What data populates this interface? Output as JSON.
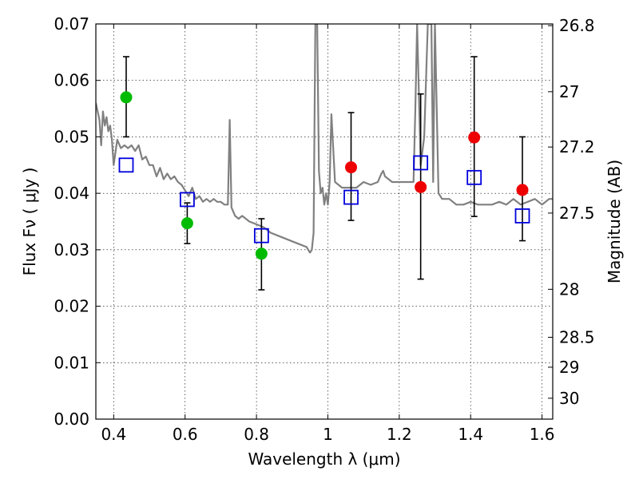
{
  "chart_data": {
    "type": "scatter",
    "title": "",
    "xlabel": "Wavelength  λ (μm)",
    "ylabel": "Flux  Fν  ( μJy )",
    "y2label": "Magnitude (AB)",
    "xlim": [
      0.35,
      1.63
    ],
    "ylim": [
      0.0,
      0.07
    ],
    "grid": true,
    "x_ticks": [
      0.4,
      0.6,
      0.8,
      1.0,
      1.2,
      1.4,
      1.6
    ],
    "x_tick_labels": [
      "0.4",
      "0.6",
      "0.8",
      "1",
      "1.2",
      "1.4",
      "1.6"
    ],
    "y_ticks": [
      0.0,
      0.01,
      0.02,
      0.03,
      0.04,
      0.05,
      0.06,
      0.07
    ],
    "y_tick_labels": [
      "0.00",
      "0.01",
      "0.02",
      "0.03",
      "0.04",
      "0.05",
      "0.06",
      "0.07"
    ],
    "y2_ticks": [
      {
        "label": "26.8",
        "flux": 0.0697
      },
      {
        "label": "27",
        "flux": 0.058
      },
      {
        "label": "27.2",
        "flux": 0.0482
      },
      {
        "label": "27.5",
        "flux": 0.0365
      },
      {
        "label": "28",
        "flux": 0.023
      },
      {
        "label": "28.5",
        "flux": 0.0145
      },
      {
        "label": "29",
        "flux": 0.0092
      },
      {
        "label": "30",
        "flux": 0.0037
      }
    ],
    "series": [
      {
        "marker": "circle",
        "color": "#00bb00",
        "points": [
          {
            "x": 0.435,
            "y": 0.057,
            "yerr_lo": 0.05,
            "yerr_hi": 0.0642
          },
          {
            "x": 0.606,
            "y": 0.0347,
            "yerr_lo": 0.0311,
            "yerr_hi": 0.0383
          },
          {
            "x": 0.814,
            "y": 0.0293,
            "yerr_lo": 0.0229,
            "yerr_hi": 0.0355
          }
        ]
      },
      {
        "marker": "circle",
        "color": "#ee0000",
        "points": [
          {
            "x": 1.065,
            "y": 0.0446,
            "yerr_lo": 0.0352,
            "yerr_hi": 0.0543
          },
          {
            "x": 1.26,
            "y": 0.0411,
            "yerr_lo": 0.0248,
            "yerr_hi": 0.0576
          },
          {
            "x": 1.41,
            "y": 0.0499,
            "yerr_lo": 0.0359,
            "yerr_hi": 0.0642
          },
          {
            "x": 1.545,
            "y": 0.0406,
            "yerr_lo": 0.0316,
            "yerr_hi": 0.05
          }
        ]
      },
      {
        "marker": "open-square",
        "color": "#0000dd",
        "points": [
          {
            "x": 0.435,
            "y": 0.045
          },
          {
            "x": 0.606,
            "y": 0.0389
          },
          {
            "x": 0.814,
            "y": 0.0325
          },
          {
            "x": 1.065,
            "y": 0.0393
          },
          {
            "x": 1.26,
            "y": 0.0454
          },
          {
            "x": 1.41,
            "y": 0.0428
          },
          {
            "x": 1.545,
            "y": 0.036
          }
        ]
      },
      {
        "marker": "line",
        "color": "#808080",
        "x": [
          0.35,
          0.36,
          0.365,
          0.37,
          0.375,
          0.38,
          0.385,
          0.39,
          0.395,
          0.4,
          0.41,
          0.42,
          0.43,
          0.44,
          0.45,
          0.46,
          0.47,
          0.48,
          0.49,
          0.5,
          0.51,
          0.52,
          0.53,
          0.54,
          0.55,
          0.56,
          0.57,
          0.58,
          0.59,
          0.6,
          0.61,
          0.62,
          0.63,
          0.64,
          0.65,
          0.66,
          0.67,
          0.68,
          0.69,
          0.7,
          0.71,
          0.72,
          0.725,
          0.73,
          0.74,
          0.75,
          0.76,
          0.78,
          0.8,
          0.82,
          0.84,
          0.86,
          0.88,
          0.9,
          0.92,
          0.94,
          0.95,
          0.955,
          0.96,
          0.965,
          0.97,
          0.975,
          0.98,
          0.985,
          0.99,
          0.995,
          1.0,
          1.005,
          1.01,
          1.02,
          1.04,
          1.06,
          1.08,
          1.1,
          1.12,
          1.14,
          1.15,
          1.155,
          1.16,
          1.18,
          1.2,
          1.22,
          1.24,
          1.245,
          1.25,
          1.26,
          1.27,
          1.28,
          1.29,
          1.295,
          1.3,
          1.31,
          1.32,
          1.34,
          1.36,
          1.38,
          1.4,
          1.42,
          1.44,
          1.46,
          1.48,
          1.5,
          1.52,
          1.54,
          1.56,
          1.58,
          1.6,
          1.62,
          1.63
        ],
        "y": [
          0.056,
          0.053,
          0.0485,
          0.0545,
          0.052,
          0.0535,
          0.051,
          0.052,
          0.0495,
          0.045,
          0.0495,
          0.048,
          0.0485,
          0.048,
          0.0485,
          0.0475,
          0.0485,
          0.046,
          0.0465,
          0.045,
          0.045,
          0.043,
          0.0445,
          0.0425,
          0.0435,
          0.0425,
          0.043,
          0.042,
          0.0415,
          0.0405,
          0.0395,
          0.041,
          0.039,
          0.0395,
          0.0385,
          0.039,
          0.0385,
          0.039,
          0.0385,
          0.0385,
          0.038,
          0.038,
          0.053,
          0.0375,
          0.036,
          0.0355,
          0.036,
          0.035,
          0.0345,
          0.034,
          0.033,
          0.0325,
          0.032,
          0.0315,
          0.031,
          0.0305,
          0.0295,
          0.03,
          0.033,
          0.07,
          0.07,
          0.044,
          0.04,
          0.041,
          0.038,
          0.04,
          0.038,
          0.042,
          0.054,
          0.042,
          0.041,
          0.041,
          0.041,
          0.042,
          0.0415,
          0.042,
          0.0435,
          0.044,
          0.043,
          0.042,
          0.042,
          0.042,
          0.042,
          0.055,
          0.07,
          0.045,
          0.05,
          0.07,
          0.07,
          0.042,
          0.07,
          0.04,
          0.039,
          0.039,
          0.038,
          0.038,
          0.0385,
          0.038,
          0.038,
          0.038,
          0.0385,
          0.038,
          0.039,
          0.038,
          0.0385,
          0.039,
          0.038,
          0.039,
          0.039
        ]
      }
    ]
  }
}
